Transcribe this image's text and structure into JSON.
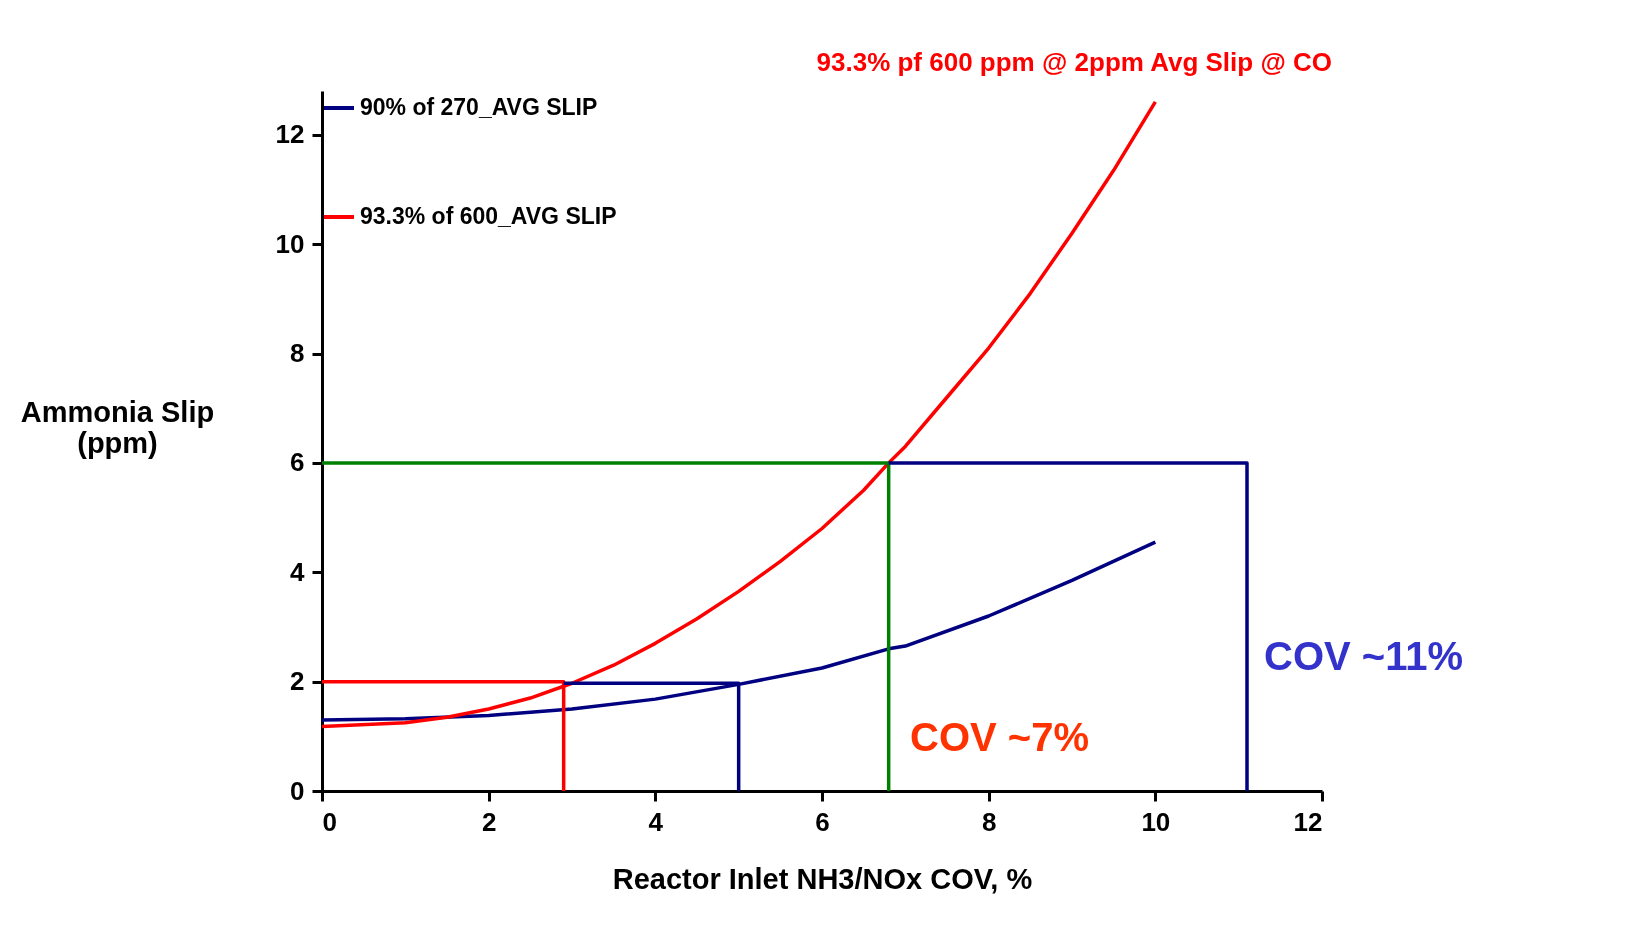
{
  "chart_data": {
    "type": "line",
    "xlabel": "Reactor Inlet NH3/NOx COV, %",
    "ylabel": "Ammonia Slip (ppm)",
    "xlim": [
      0,
      12
    ],
    "ylim": [
      0,
      12.8
    ],
    "xticks": [
      0,
      2,
      4,
      6,
      8,
      10,
      12
    ],
    "yticks": [
      0,
      2,
      4,
      6,
      8,
      10,
      12
    ],
    "grid": false,
    "legend": "top left",
    "marker": "none",
    "line_style": "solid",
    "series": [
      {
        "name": "90% of 270_AVG SLIP",
        "color": "#000080",
        "x": [
          0,
          1,
          2,
          3,
          4,
          5,
          6,
          6.8,
          7,
          8,
          9,
          10
        ],
        "values": [
          1.3,
          1.32,
          1.38,
          1.5,
          1.68,
          1.95,
          2.25,
          2.6,
          2.65,
          3.2,
          3.85,
          4.55
        ]
      },
      {
        "name": "93.3% of 600_AVG SLIP",
        "color": "#ff0000",
        "x": [
          0,
          1,
          1.5,
          2,
          2.5,
          3,
          3.5,
          4,
          4.5,
          5,
          5.5,
          6,
          6.5,
          6.8,
          7,
          7.5,
          8,
          8.5,
          9,
          9.5,
          10
        ],
        "values": [
          1.18,
          1.25,
          1.35,
          1.5,
          1.7,
          1.97,
          2.3,
          2.7,
          3.15,
          3.65,
          4.2,
          4.8,
          5.5,
          6.0,
          6.3,
          7.2,
          8.1,
          9.1,
          10.2,
          11.35,
          12.6
        ]
      },
      {
        "color": "#008000",
        "x": [
          0,
          6.8,
          6.8
        ],
        "values": [
          6,
          6,
          0
        ]
      },
      {
        "color": "#000080",
        "x": [
          6.8,
          11.1,
          11.1
        ],
        "values": [
          6,
          6,
          0
        ]
      },
      {
        "color": "#ff0000",
        "x": [
          0,
          2.9,
          2.9
        ],
        "values": [
          2,
          2,
          0
        ]
      },
      {
        "color": "#000080",
        "x": [
          2.9,
          5,
          5
        ],
        "values": [
          1.97,
          1.97,
          0
        ]
      }
    ],
    "annotations": [
      "93.3% pf 600 ppm @ 2ppm Avg Slip @ CO",
      "COV ~7%",
      "COV ~11%"
    ]
  }
}
